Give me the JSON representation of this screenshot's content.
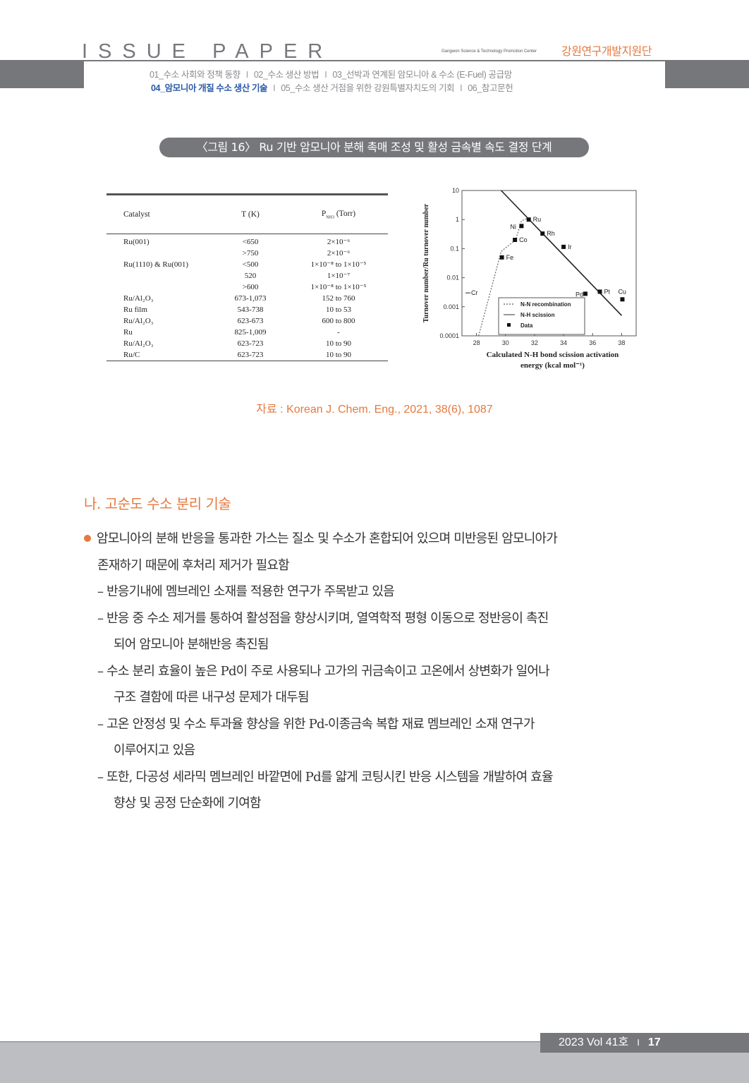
{
  "header": {
    "brand": "ISSUE PAPER",
    "org_en": "Gangwon Science & Technology Promotion Center",
    "org_kr": "강원연구개발지원단",
    "nav_row1": [
      "01_수소 사회와 정책 동향",
      "02_수소 생산 방법",
      "03_선박과 연계된 암모니아 & 수소 (E-Fuel) 공급망"
    ],
    "nav_row2": [
      "04_암모니아 개질 수소 생산 기술",
      "05_수소 생산 거점을 위한 강원특별자치도의 기회",
      "06_참고문헌"
    ],
    "nav_separator": "I",
    "active": "04_암모니아 개질 수소 생산 기술"
  },
  "figure": {
    "caption": "〈그림 16〉 Ru 기반 암모니아 분해 촉매 조성 및 활성 금속별 속도 결정 단계",
    "source": "자료 : Korean J. Chem. Eng., 2021, 38(6), 1087",
    "table": {
      "headers": [
        "Catalyst",
        "T (K)",
        "P",
        "NH3",
        " (Torr)"
      ],
      "rows": [
        [
          "Ru(001)",
          "<650",
          "2×10⁻⁶"
        ],
        [
          "",
          ">750",
          "2×10⁻⁶"
        ],
        [
          "Ru(1110) & Ru(001)",
          "<500",
          "1×10⁻⁸ to 1×10⁻⁵"
        ],
        [
          "",
          "520",
          "1×10⁻⁷"
        ],
        [
          "",
          ">600",
          "1×10⁻⁸ to 1×10⁻⁵"
        ],
        [
          "Ru/Al₂O₃",
          "673-1,073",
          "152 to 760"
        ],
        [
          "Ru film",
          "543-738",
          "10 to 53"
        ],
        [
          "Ru/Al₂O₃",
          "623-673",
          "600 to 800"
        ],
        [
          "Ru",
          "825-1,009",
          "-"
        ],
        [
          "Ru/Al₂O₃",
          "623-723",
          "10 to 90"
        ],
        [
          "Ru/C",
          "623-723",
          "10 to 90"
        ]
      ]
    }
  },
  "chart_data": {
    "type": "scatter",
    "xlabel": "Calculated N-H bond scission activation energy (kcal mol⁻¹)",
    "xlabel_lines": [
      "Calculated N-H bond scission activation",
      "energy (kcal mol⁻¹)"
    ],
    "ylabel": "Turnover number/Ru turnover number",
    "xlim": [
      27,
      39
    ],
    "ylim": [
      0.0001,
      10
    ],
    "yscale": "log",
    "xticks": [
      "28",
      "30",
      "32",
      "34",
      "36",
      "38"
    ],
    "yticks": [
      "10",
      "1",
      "0.1",
      "0.01",
      "0.001",
      "0.0001"
    ],
    "legend_position": "bottom-center",
    "points": [
      {
        "label": "Ru",
        "x": 31.6,
        "y": 1.0
      },
      {
        "label": "Ni",
        "x": 31.1,
        "y": 0.6
      },
      {
        "label": "Co",
        "x": 30.65,
        "y": 0.2
      },
      {
        "label": "Fe",
        "x": 29.75,
        "y": 0.05
      },
      {
        "label": "Rh",
        "x": 32.55,
        "y": 0.33
      },
      {
        "label": "Ir",
        "x": 34.0,
        "y": 0.115
      },
      {
        "label": "Pd",
        "x": 35.5,
        "y": 0.0028
      },
      {
        "label": "Pt",
        "x": 36.5,
        "y": 0.0033
      },
      {
        "label": "Cu",
        "x": 38.05,
        "y": 0.0018
      }
    ],
    "offscale_annotation": {
      "label": "Cr",
      "y": 0.003
    },
    "series": [
      {
        "name": "N-N recombination",
        "style": "dashed",
        "x": [
          28.15,
          29.7,
          30.7,
          31.1,
          31.5
        ],
        "y": [
          0.0001,
          0.08,
          0.2,
          0.9,
          1.1
        ]
      },
      {
        "name": "N-H scission",
        "style": "solid",
        "x": [
          29.7,
          38.0
        ],
        "y": [
          10,
          0.0005
        ]
      },
      {
        "name": "Data",
        "style": "marker"
      }
    ]
  },
  "section": {
    "title": "나. 고순도 수소 분리 기술",
    "bullet_color": "#e5793f",
    "bullet": [
      "암모니아의 분해 반응을 통과한 가스는 질소 및 수소가 혼합되어 있으며 미반응된 암모니아가",
      "존재하기 때문에 후처리 제거가 필요함"
    ],
    "dashes": [
      [
        "– 반응기내에 멤브레인 소재를 적용한 연구가 주목받고 있음"
      ],
      [
        "– 반응 중 수소 제거를 통하여 활성점을 향상시키며, 열역학적 평형 이동으로 정반응이 촉진",
        "되어 암모니아 분해반응 촉진됨"
      ],
      [
        "– 수소 분리 효율이 높은 Pd이 주로 사용되나 고가의 귀금속이고 고온에서 상변화가 일어나",
        "구조 결함에 따른 내구성 문제가 대두됨"
      ],
      [
        "– 고온 안정성 및 수소 투과율 향상을 위한 Pd-이종금속 복합 재료 멤브레인 소재 연구가",
        "이루어지고 있음"
      ],
      [
        "– 또한, 다공성 세라믹 멤브레인 바깥면에 Pd를 얇게 코팅시킨 반응 시스템을 개발하여 효율",
        "향상 및 공정 단순화에 기여함"
      ]
    ]
  },
  "footer": {
    "issue": "2023 Vol 41호",
    "separator": "I",
    "page": "17"
  },
  "colors": {
    "accent": "#e5793f",
    "gray": "#76777b",
    "nav_active": "#2a5aa8",
    "footer_band": "#bdbec2"
  }
}
